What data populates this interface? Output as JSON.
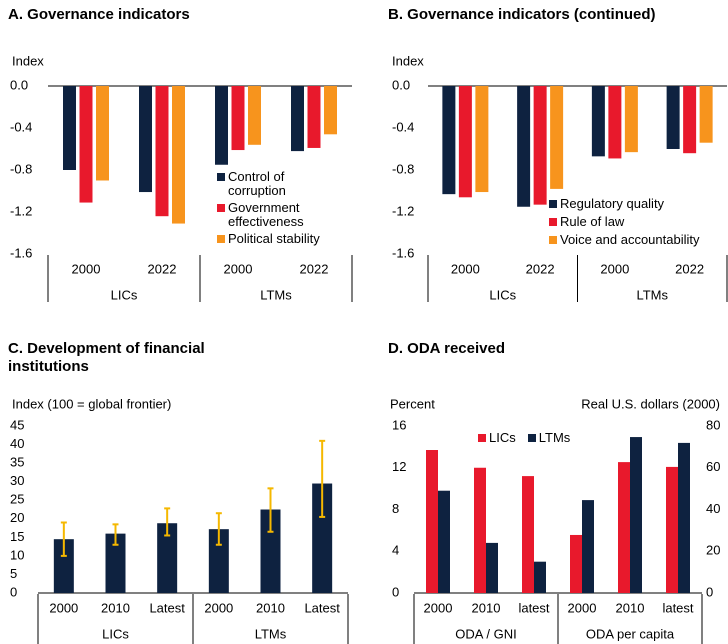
{
  "chart_data": [
    {
      "type": "bar",
      "title": "A. Governance indicators",
      "y_label": "Index",
      "categories": [
        "2000",
        "2022",
        "2000",
        "2022"
      ],
      "groups": [
        {
          "label": "LICs"
        },
        {
          "label": "LTMs"
        }
      ],
      "series": [
        {
          "name": "Control of corruption",
          "color": "#0e2240",
          "values": [
            -0.8,
            -1.01,
            -0.75,
            -0.62
          ]
        },
        {
          "name": "Government effectiveness",
          "color": "#e8192c",
          "values": [
            -1.11,
            -1.24,
            -0.61,
            -0.59
          ]
        },
        {
          "name": "Political stability",
          "color": "#f7941d",
          "values": [
            -0.9,
            -1.31,
            -0.56,
            -0.46
          ]
        }
      ],
      "ylim": [
        -1.6,
        0
      ],
      "yticks": [
        {
          "value": 0,
          "label": "0.0"
        },
        -0.4,
        -0.8,
        -1.2,
        -1.6
      ]
    },
    {
      "type": "bar",
      "title": "B. Governance indicators (continued)",
      "y_label": "Index",
      "categories": [
        "2000",
        "2022",
        "2000",
        "2022"
      ],
      "groups": [
        {
          "label": "LICs"
        },
        {
          "label": "LTMs"
        }
      ],
      "series": [
        {
          "name": "Regulatory quality",
          "color": "#0e2240",
          "values": [
            -1.03,
            -1.15,
            -0.67,
            -0.6
          ]
        },
        {
          "name": "Rule of law",
          "color": "#e8192c",
          "values": [
            -1.06,
            -1.13,
            -0.69,
            -0.64
          ]
        },
        {
          "name": "Voice and accountability",
          "color": "#f7941d",
          "values": [
            -1.01,
            -0.98,
            -0.63,
            -0.54
          ]
        }
      ],
      "ylim": [
        -1.6,
        0
      ],
      "yticks": [
        {
          "value": 0,
          "label": "0.0"
        },
        -0.4,
        -0.8,
        -1.2,
        -1.6
      ]
    },
    {
      "type": "bar",
      "title": "C. Development of financial institutions",
      "y_label": "Index (100 = global frontier)",
      "categories": [
        "2000",
        "2010",
        "Latest",
        "2000",
        "2010",
        "Latest"
      ],
      "groups": [
        {
          "label": "LICs"
        },
        {
          "label": "LTMs"
        }
      ],
      "values": [
        14.5,
        16.0,
        18.8,
        17.2,
        22.5,
        29.5
      ],
      "color": "#0e2240",
      "error_low": [
        10.0,
        13.0,
        15.5,
        13.0,
        16.5,
        20.5
      ],
      "error_high": [
        19.0,
        18.5,
        22.8,
        21.5,
        28.2,
        41.0
      ],
      "error_color": "#f5b800",
      "ylim": [
        0,
        45
      ],
      "yticks": [
        0,
        5,
        10,
        15,
        20,
        25,
        30,
        35,
        40,
        45
      ]
    },
    {
      "type": "bar",
      "title": "D. ODA received",
      "y_label": "Percent",
      "y2_label": "Real U.S. dollars (2000)",
      "categories": [
        "2000",
        "2010",
        "latest",
        "2000",
        "2010",
        "latest"
      ],
      "groups": [
        {
          "label": "ODA / GNI",
          "axis": "y"
        },
        {
          "label": "ODA per capita",
          "axis": "y2"
        }
      ],
      "series": [
        {
          "name": "LICs",
          "color": "#e8192c",
          "values": [
            13.7,
            12.0,
            11.2,
            27.8,
            62.7,
            60.4
          ]
        },
        {
          "name": "LTMs",
          "color": "#0e2240",
          "values": [
            9.8,
            4.8,
            3.0,
            44.5,
            74.7,
            71.9
          ]
        }
      ],
      "ylim": [
        0,
        16
      ],
      "yticks": [
        0,
        4,
        8,
        12,
        16
      ],
      "y2lim": [
        0,
        80
      ],
      "y2ticks": [
        0,
        20,
        40,
        60,
        80
      ]
    }
  ]
}
